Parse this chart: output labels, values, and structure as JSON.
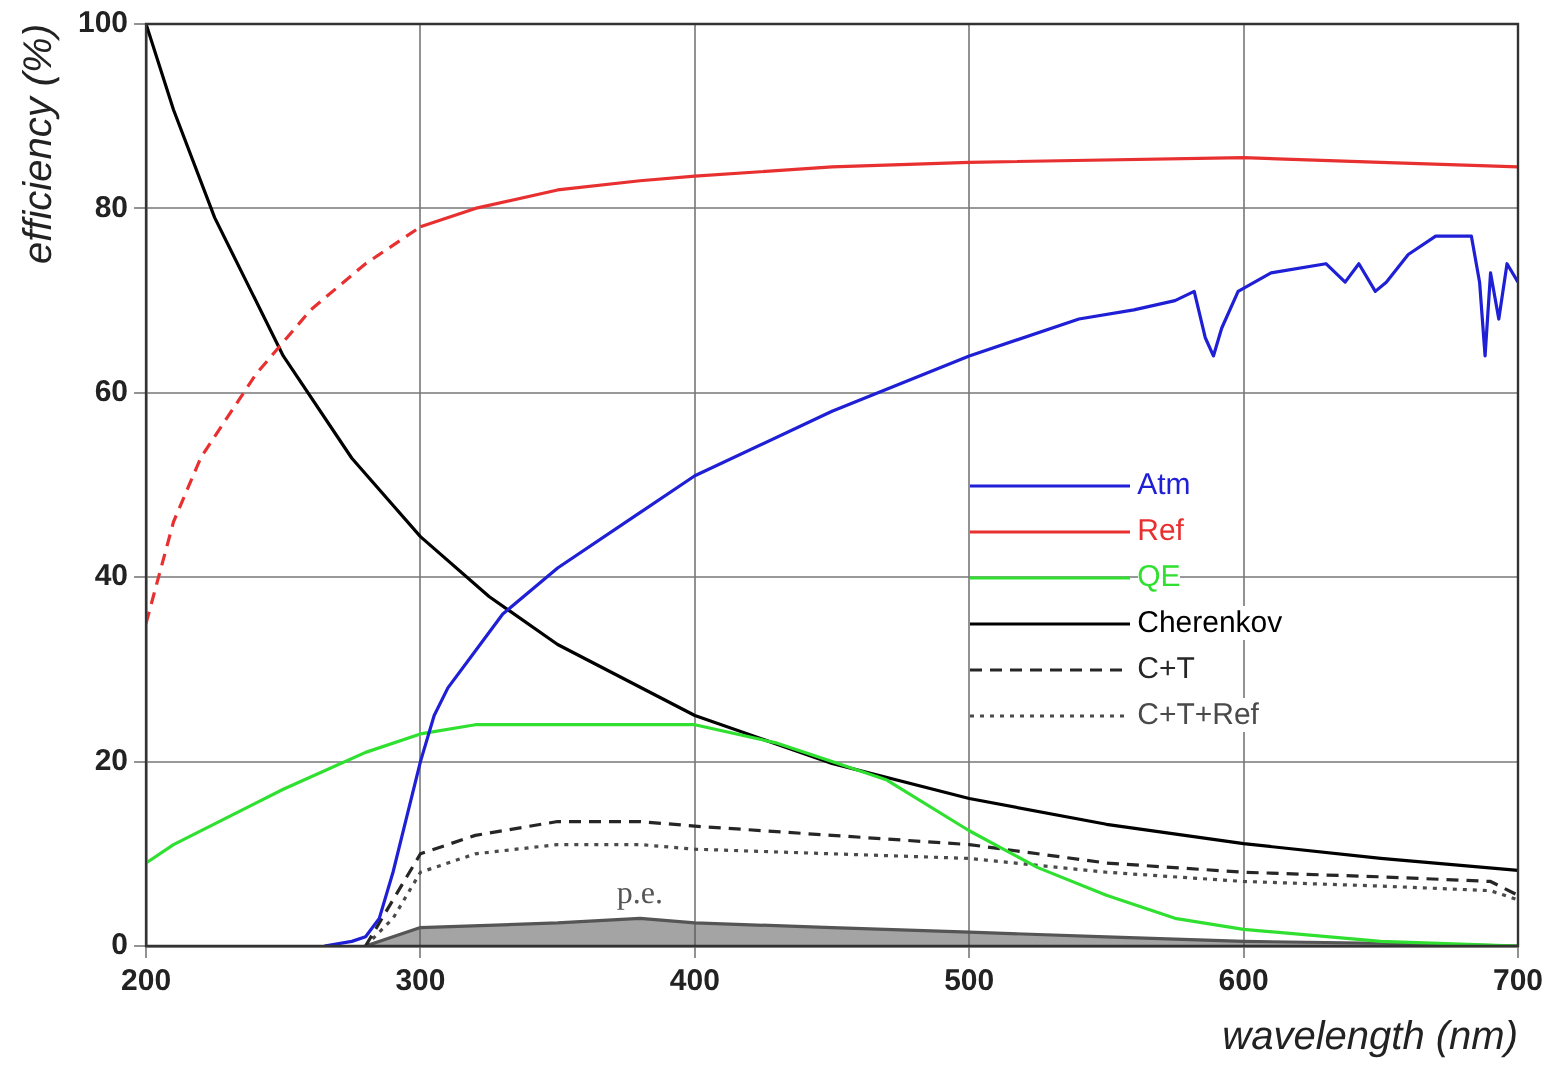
{
  "chart_data": {
    "type": "line",
    "xlabel": "wavelength (nm)",
    "ylabel": "efficiency (%)",
    "xlim": [
      200,
      700
    ],
    "xticks": [
      200,
      300,
      400,
      500,
      600,
      700
    ],
    "ylim": [
      0,
      100
    ],
    "yticks": [
      0,
      20,
      40,
      60,
      80,
      100
    ],
    "grid": true,
    "legend": "right",
    "marker": "none",
    "series": [
      {
        "name": "Atm",
        "color": "#1f1fd6",
        "line_style": "solid",
        "x": [
          265,
          275,
          280,
          285,
          290,
          295,
          300,
          305,
          310,
          320,
          330,
          350,
          380,
          400,
          450,
          500,
          540,
          560,
          575,
          582,
          586,
          589,
          592,
          598,
          610,
          630,
          637,
          642,
          648,
          652,
          660,
          670,
          683,
          686,
          688,
          690,
          693,
          696,
          700
        ],
        "values": [
          0,
          0.5,
          1,
          3,
          8,
          14,
          20,
          25,
          28,
          32,
          36,
          41,
          47,
          51,
          58,
          64,
          68,
          69,
          70,
          71,
          66,
          64,
          67,
          71,
          73,
          74,
          72,
          74,
          71,
          72,
          75,
          77,
          77,
          72,
          64,
          73,
          68,
          74,
          72
        ]
      },
      {
        "name": "Ref",
        "color": "#e83030",
        "line_style": "solid",
        "x": [
          300,
          320,
          350,
          380,
          400,
          450,
          500,
          600,
          650,
          700
        ],
        "values": [
          78,
          80,
          82,
          83,
          83.5,
          84.5,
          85,
          85.5,
          85,
          84.5
        ]
      },
      {
        "color": "#e83030",
        "line_style": "dashed",
        "x": [
          200,
          210,
          220,
          240,
          260,
          280,
          300
        ],
        "values": [
          35,
          46,
          53,
          62,
          69,
          74,
          78
        ]
      },
      {
        "name": "QE",
        "color": "#30e030",
        "line_style": "solid",
        "x": [
          200,
          210,
          250,
          280,
          300,
          320,
          400,
          430,
          450,
          470,
          500,
          525,
          550,
          575,
          600,
          650,
          700
        ],
        "values": [
          9,
          11,
          17,
          21,
          23,
          24,
          24,
          22,
          20,
          18,
          12.5,
          8.5,
          5.5,
          3,
          1.8,
          0.5,
          0
        ]
      },
      {
        "name": "Cherenkov",
        "color": "#000000",
        "line_style": "solid",
        "x": [
          200,
          210,
          225,
          250,
          275,
          300,
          325,
          350,
          400,
          450,
          500,
          550,
          600,
          650,
          700
        ],
        "values": [
          100,
          90.7,
          79,
          64,
          52.9,
          44.4,
          37.9,
          32.7,
          25,
          19.8,
          16,
          13.2,
          11.1,
          9.5,
          8.2
        ]
      },
      {
        "name": "C+T",
        "color": "#262626",
        "line_style": "dashed",
        "x": [
          280,
          290,
          300,
          320,
          350,
          380,
          400,
          450,
          500,
          550,
          600,
          650,
          690,
          700
        ],
        "values": [
          0,
          5,
          10,
          12,
          13.5,
          13.5,
          13,
          12,
          11,
          9,
          8,
          7.5,
          7,
          5.5
        ]
      },
      {
        "name": "C+T+Ref",
        "color": "#4a4a4a",
        "line_style": "dotted",
        "x": [
          280,
          290,
          300,
          320,
          350,
          380,
          400,
          450,
          500,
          550,
          600,
          650,
          690,
          700
        ],
        "values": [
          0,
          3,
          8,
          10,
          11,
          11,
          10.5,
          10,
          9.5,
          8,
          7,
          6.5,
          6,
          5
        ]
      },
      {
        "name": "p.e.",
        "type": "area",
        "color": "#555555",
        "line_style": "solid",
        "x": [
          280,
          300,
          350,
          380,
          400,
          450,
          500,
          550,
          600,
          650,
          700
        ],
        "values": [
          0,
          2,
          2.5,
          3,
          2.5,
          2,
          1.5,
          1,
          0.5,
          0.3,
          0
        ]
      }
    ]
  }
}
